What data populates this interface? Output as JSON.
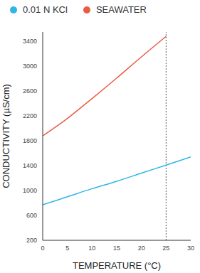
{
  "chart_data": {
    "type": "line",
    "x_label": "TEMPERATURE (°C)",
    "y_label": "CONDUCTIVITY (µS/cm)",
    "x": [
      0,
      5,
      10,
      15,
      20,
      25,
      30
    ],
    "series": [
      {
        "name": "0.01 N KCl",
        "color": "#2fb5e6",
        "values": [
          770,
          900,
          1030,
          1150,
          1280,
          1410,
          1540
        ]
      },
      {
        "name": "SEAWATER",
        "color": "#ea5a45",
        "values": [
          1880,
          2160,
          2480,
          2810,
          3150,
          3480,
          null
        ]
      }
    ],
    "xlim": [
      0,
      30
    ],
    "xticks": [
      0,
      5,
      10,
      15,
      20,
      25,
      30
    ],
    "ylim": [
      200,
      3550
    ],
    "yticks": [
      200,
      600,
      1000,
      1400,
      1800,
      2200,
      2600,
      3000,
      3400
    ],
    "vline": 25,
    "grid": false,
    "legend": "top"
  }
}
